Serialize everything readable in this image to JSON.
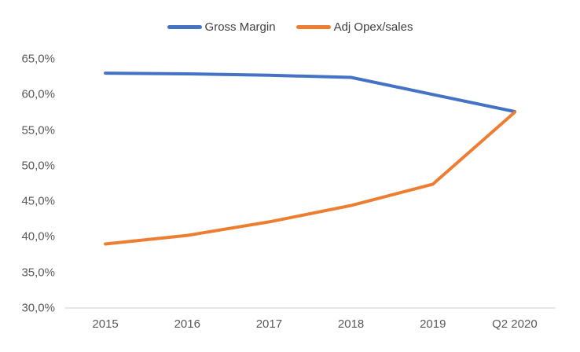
{
  "chart_data": {
    "type": "line",
    "categories": [
      "2015",
      "2016",
      "2017",
      "2018",
      "2019",
      "Q2 2020"
    ],
    "series": [
      {
        "name": "Gross Margin",
        "color": "#4472C4",
        "values": [
          63.0,
          62.9,
          62.7,
          62.4,
          60.0,
          57.6
        ]
      },
      {
        "name": "Adj Opex/sales",
        "color": "#ED7D31",
        "values": [
          39.0,
          40.2,
          42.1,
          44.4,
          47.4,
          57.5
        ]
      }
    ],
    "title": "",
    "xlabel": "",
    "ylabel": "",
    "ylim": [
      30,
      65
    ],
    "ytick_step": 5,
    "ytick_labels": [
      "65,0%",
      "60,0%",
      "55,0%",
      "50,0%",
      "45,0%",
      "40,0%",
      "35,0%",
      "30,0%"
    ],
    "grid": false,
    "legend_position": "top",
    "axis_line_color": "#D9D9D9",
    "tick_label_color": "#595959",
    "legend_label_color": "#404040",
    "background_color": "#FFFFFF"
  }
}
